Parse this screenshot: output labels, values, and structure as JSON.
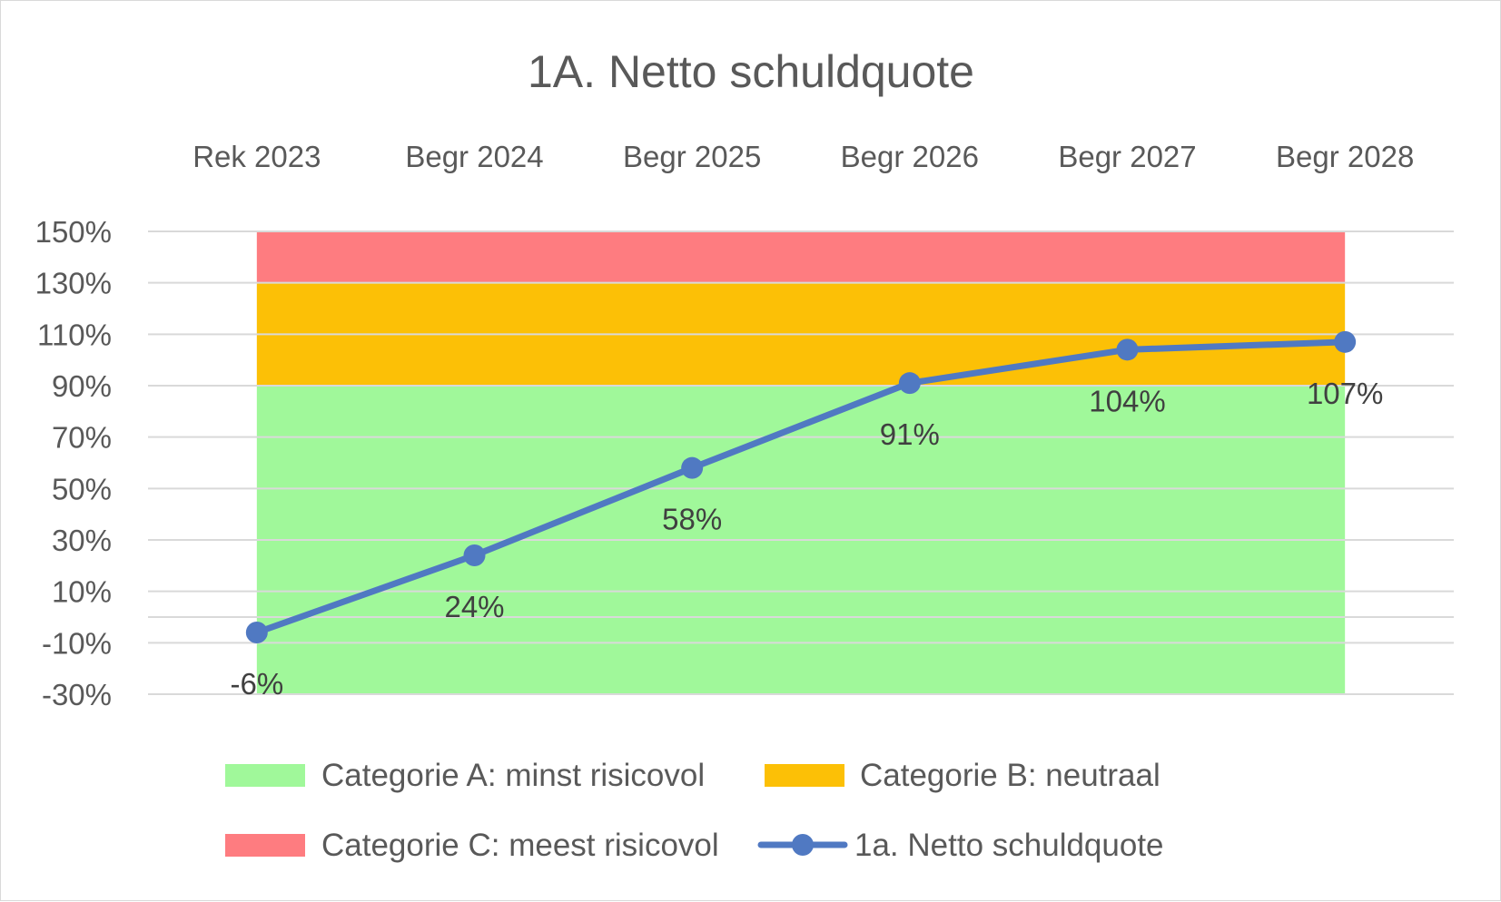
{
  "chart_data": {
    "type": "line",
    "title": "1A. Netto schuldquote",
    "categories": [
      "Rek 2023",
      "Begr 2024",
      "Begr 2025",
      "Begr 2026",
      "Begr 2027",
      "Begr 2028"
    ],
    "ylim": [
      -30,
      150
    ],
    "y_ticks": [
      150,
      130,
      110,
      90,
      70,
      50,
      30,
      10,
      -10,
      -30
    ],
    "y_tick_labels": [
      "150%",
      "130%",
      "110%",
      "90%",
      "70%",
      "50%",
      "30%",
      "10%",
      "-10%",
      "-30%"
    ],
    "grid": true,
    "x_axis_position": "top",
    "legend_position": "bottom",
    "bands": [
      {
        "name": "Categorie A: minst risicovol",
        "from": -30,
        "to": 90,
        "color": "#a0f89a"
      },
      {
        "name": "Categorie B: neutraal",
        "from": 90,
        "to": 130,
        "color": "#fcc006"
      },
      {
        "name": "Categorie C: meest risicovol",
        "from": 130,
        "to": 150,
        "color": "#fe7c80"
      }
    ],
    "series": [
      {
        "name": "1a. Netto schuldquote",
        "color": "#5079c2",
        "values": [
          -6,
          24,
          58,
          91,
          104,
          107
        ],
        "labels": [
          "-6%",
          "24%",
          "58%",
          "91%",
          "104%",
          "107%"
        ]
      }
    ]
  }
}
